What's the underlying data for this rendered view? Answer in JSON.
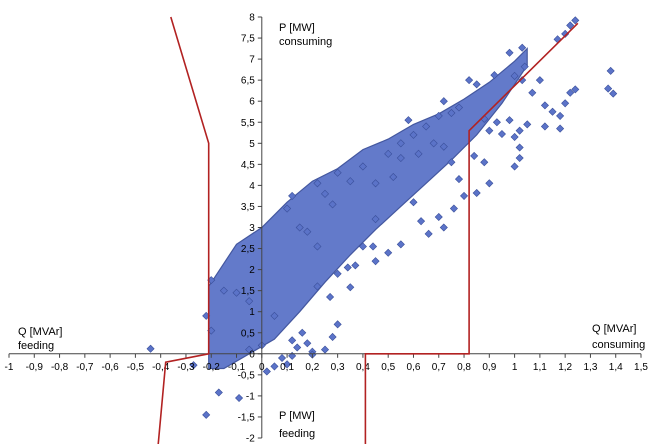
{
  "chart_data": {
    "type": "scatter",
    "xlim": [
      -1,
      1.5
    ],
    "ylim": [
      -2,
      8
    ],
    "x_ticks": [
      "-1",
      "-0,9",
      "-0,8",
      "-0,7",
      "-0,6",
      "-0,5",
      "-0,4",
      "-0,3",
      "-0,2",
      "-0,1",
      "0",
      "0,1",
      "0,2",
      "0,3",
      "0,4",
      "0,5",
      "0,6",
      "0,7",
      "0,8",
      "0,9",
      "1",
      "1,1",
      "1,2",
      "1,3",
      "1,4",
      "1,5"
    ],
    "x_tick_values": [
      -1,
      -0.9,
      -0.8,
      -0.7,
      -0.6,
      -0.5,
      -0.4,
      -0.3,
      -0.2,
      -0.1,
      0,
      0.1,
      0.2,
      0.3,
      0.4,
      0.5,
      0.6,
      0.7,
      0.8,
      0.9,
      1,
      1.1,
      1.2,
      1.3,
      1.4,
      1.5
    ],
    "y_ticks": [
      "-2",
      "-1,5",
      "-1",
      "-0,5",
      "0",
      "0,5",
      "1",
      "1,5",
      "2",
      "2,5",
      "3",
      "3,5",
      "4",
      "4,5",
      "5",
      "5,5",
      "6",
      "6,5",
      "7",
      "7,5",
      "8"
    ],
    "y_tick_values": [
      -2,
      -1.5,
      -1,
      -0.5,
      0,
      0.5,
      1,
      1.5,
      2,
      2.5,
      3,
      3.5,
      4,
      4.5,
      5,
      5.5,
      6,
      6.5,
      7,
      7.5,
      8
    ],
    "labels": {
      "y_pos_title": "P [MW]",
      "y_pos_sub": "consuming",
      "y_neg_title": "P [MW]",
      "y_neg_sub": "feeding",
      "x_neg_title": "Q [MVAr]",
      "x_neg_sub": "feeding",
      "x_pos_title": "Q [MVAr]",
      "x_pos_sub": "consuming"
    },
    "grid": false,
    "colors": {
      "point_fill": "#5b73c8",
      "point_stroke": "#3a4f9a",
      "boundary": "#b22222"
    },
    "boundary_lines": [
      {
        "points": [
          [
            -0.36,
            8
          ],
          [
            -0.21,
            5.0
          ],
          [
            -0.21,
            0.0
          ],
          [
            -0.38,
            -0.2
          ],
          [
            -0.41,
            -2.15
          ]
        ]
      },
      {
        "points": [
          [
            1.25,
            7.85
          ],
          [
            0.82,
            5.3
          ],
          [
            0.82,
            0.0
          ],
          [
            0.41,
            0.0
          ],
          [
            0.41,
            -2.15
          ]
        ]
      }
    ],
    "series": [
      {
        "points": [
          [
            -0.44,
            0.12
          ],
          [
            -0.22,
            -1.45
          ],
          [
            -0.27,
            -0.27
          ],
          [
            -0.17,
            -0.92
          ],
          [
            -0.09,
            -1.05
          ],
          [
            0.02,
            -0.42
          ],
          [
            0.1,
            -0.25
          ],
          [
            1.38,
            6.72
          ],
          [
            1.39,
            6.18
          ],
          [
            1.37,
            6.3
          ],
          [
            1.12,
            5.9
          ],
          [
            1.15,
            5.75
          ],
          [
            1.18,
            5.65
          ],
          [
            1.2,
            5.95
          ],
          [
            1.22,
            6.2
          ],
          [
            1.24,
            6.28
          ],
          [
            1.12,
            5.4
          ],
          [
            1.18,
            5.35
          ],
          [
            1.02,
            5.3
          ],
          [
            1.05,
            5.45
          ],
          [
            1.0,
            5.15
          ],
          [
            1.02,
            4.9
          ],
          [
            1.02,
            4.65
          ],
          [
            1.0,
            4.45
          ],
          [
            0.98,
            5.55
          ],
          [
            1.03,
            6.5
          ],
          [
            1.07,
            6.2
          ],
          [
            1.1,
            6.5
          ],
          [
            1.04,
            6.82
          ],
          [
            1.0,
            6.6
          ],
          [
            1.2,
            7.6
          ],
          [
            1.22,
            7.8
          ],
          [
            1.24,
            7.92
          ],
          [
            1.17,
            7.47
          ],
          [
            1.03,
            7.27
          ],
          [
            0.98,
            7.15
          ],
          [
            0.92,
            6.62
          ],
          [
            0.85,
            6.4
          ],
          [
            0.82,
            6.5
          ],
          [
            0.93,
            5.5
          ],
          [
            0.95,
            5.22
          ],
          [
            0.9,
            5.3
          ],
          [
            0.88,
            5.58
          ],
          [
            0.75,
            4.55
          ],
          [
            0.72,
            4.92
          ],
          [
            0.78,
            4.15
          ],
          [
            0.6,
            3.6
          ],
          [
            0.63,
            3.15
          ],
          [
            0.7,
            3.25
          ],
          [
            0.8,
            3.75
          ],
          [
            0.52,
            4.2
          ],
          [
            0.45,
            4.05
          ],
          [
            0.4,
            2.55
          ],
          [
            0.34,
            2.05
          ],
          [
            0.35,
            1.58
          ],
          [
            0.27,
            1.35
          ],
          [
            0.22,
            1.6
          ],
          [
            0.16,
            0.5
          ],
          [
            0.12,
            0.32
          ],
          [
            0.14,
            0.15
          ],
          [
            0.2,
            0.05
          ],
          [
            0.05,
            0.9
          ],
          [
            -0.05,
            1.25
          ],
          [
            -0.1,
            1.45
          ],
          [
            -0.15,
            1.5
          ],
          [
            -0.2,
            1.75
          ],
          [
            -0.2,
            0.55
          ],
          [
            -0.22,
            0.9
          ],
          [
            -0.05,
            0.1
          ],
          [
            0.0,
            0.2
          ],
          [
            0.08,
            -0.1
          ],
          [
            0.05,
            -0.3
          ],
          [
            0.12,
            -0.05
          ],
          [
            0.18,
            0.25
          ],
          [
            0.2,
            -0.02
          ],
          [
            0.25,
            0.1
          ],
          [
            0.22,
            2.55
          ],
          [
            0.18,
            2.9
          ],
          [
            0.15,
            3.0
          ],
          [
            0.1,
            3.45
          ],
          [
            0.12,
            3.75
          ],
          [
            0.25,
            3.8
          ],
          [
            0.28,
            3.55
          ],
          [
            0.45,
            3.2
          ],
          [
            0.55,
            4.65
          ],
          [
            0.62,
            4.75
          ],
          [
            0.68,
            5.0
          ],
          [
            0.65,
            5.4
          ],
          [
            0.6,
            5.2
          ],
          [
            0.55,
            5.0
          ],
          [
            0.5,
            4.75
          ],
          [
            0.4,
            4.45
          ],
          [
            0.35,
            4.1
          ],
          [
            0.3,
            4.3
          ],
          [
            0.22,
            4.05
          ],
          [
            0.58,
            5.55
          ],
          [
            0.7,
            5.65
          ],
          [
            0.75,
            5.72
          ],
          [
            0.72,
            6.0
          ],
          [
            0.78,
            5.85
          ],
          [
            0.45,
            2.2
          ],
          [
            0.5,
            2.4
          ],
          [
            0.55,
            2.6
          ],
          [
            0.66,
            2.85
          ],
          [
            0.72,
            3.0
          ],
          [
            0.76,
            3.45
          ],
          [
            0.85,
            3.82
          ],
          [
            0.9,
            4.05
          ],
          [
            0.88,
            4.55
          ],
          [
            0.84,
            4.7
          ],
          [
            0.3,
            1.9
          ],
          [
            0.37,
            2.1
          ],
          [
            0.44,
            2.55
          ],
          [
            0.3,
            0.7
          ],
          [
            0.28,
            0.4
          ]
        ]
      }
    ],
    "density_band": {
      "upper": [
        [
          -0.21,
          1.6
        ],
        [
          -0.1,
          2.6
        ],
        [
          0.0,
          3.0
        ],
        [
          0.1,
          3.6
        ],
        [
          0.2,
          4.1
        ],
        [
          0.3,
          4.4
        ],
        [
          0.4,
          4.85
        ],
        [
          0.5,
          5.1
        ],
        [
          0.6,
          5.45
        ],
        [
          0.7,
          5.7
        ],
        [
          0.8,
          6.05
        ],
        [
          0.9,
          6.45
        ],
        [
          1.0,
          6.95
        ],
        [
          1.05,
          7.25
        ]
      ],
      "lower": [
        [
          1.05,
          6.85
        ],
        [
          0.95,
          5.95
        ],
        [
          0.85,
          5.2
        ],
        [
          0.75,
          4.6
        ],
        [
          0.65,
          4.05
        ],
        [
          0.55,
          3.5
        ],
        [
          0.45,
          2.95
        ],
        [
          0.35,
          2.35
        ],
        [
          0.25,
          1.7
        ],
        [
          0.15,
          1.0
        ],
        [
          0.05,
          0.35
        ],
        [
          -0.05,
          0.0
        ],
        [
          -0.15,
          -0.35
        ],
        [
          -0.21,
          -0.35
        ]
      ]
    }
  }
}
